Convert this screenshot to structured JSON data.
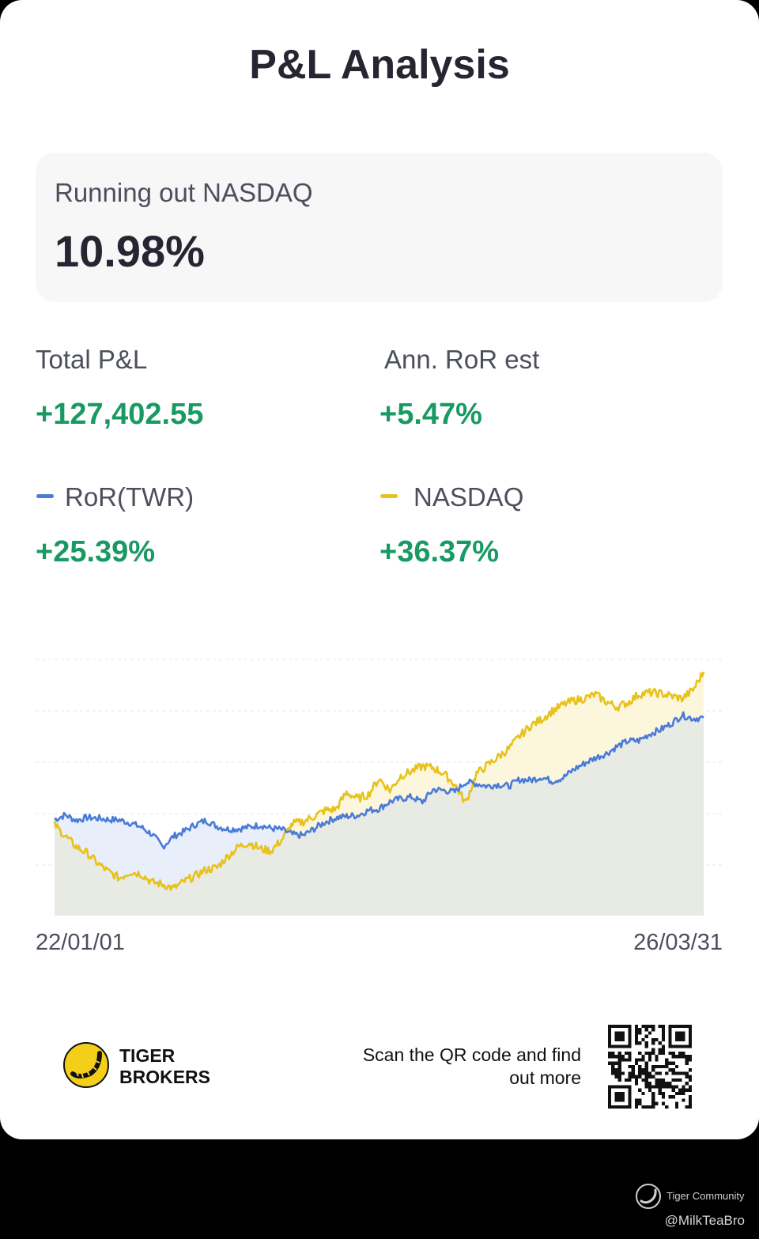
{
  "title": "P&L Analysis",
  "summary": {
    "label": "Running out NASDAQ",
    "value": "10.98%"
  },
  "stats": {
    "total_pl": {
      "label": "Total P&L",
      "value": "+127,402.55"
    },
    "ann_ror": {
      "label": "Ann. RoR est",
      "value": "+5.47%"
    },
    "ror_twr": {
      "label": "RoR(TWR)",
      "value": "+25.39%",
      "color": "#4a7bd8"
    },
    "nasdaq": {
      "label": "NASDAQ",
      "value": "+36.37%",
      "color": "#e8c21a"
    }
  },
  "colors": {
    "positive": "#1a9a63",
    "ror_line": "#4a7bd8",
    "nasdaq_line": "#e8c21a"
  },
  "chart_data": {
    "type": "line",
    "x_start": "22/01/01",
    "x_end": "26/03/31",
    "grid": true,
    "series": [
      {
        "name": "RoR(TWR)",
        "color": "#4a7bd8",
        "values": [
          1.0,
          2.1,
          0.8,
          1.5,
          1.3,
          1.0,
          0.9,
          0.2,
          -0.8,
          -2.5,
          -5.5,
          -3.0,
          -1.8,
          -0.2,
          0.8,
          -0.6,
          -1.3,
          -1.2,
          -0.8,
          -0.3,
          -1.1,
          -1.4,
          -2.6,
          -2.8,
          -1.2,
          0.4,
          1.4,
          1.8,
          2.0,
          3.2,
          3.6,
          5.3,
          6.0,
          6.4,
          5.2,
          8.2,
          8.0,
          7.6,
          10.0,
          9.6,
          9.0,
          9.4,
          9.0,
          10.6,
          10.4,
          11.2,
          10.2,
          11.0,
          13.0,
          14.5,
          15.8,
          16.8,
          18.5,
          19.8,
          19.9,
          21.5,
          22.5,
          24.0,
          26.0,
          25.2,
          25.39
        ]
      },
      {
        "name": "NASDAQ",
        "color": "#e8c21a",
        "values": [
          -0.2,
          -3.0,
          -5.5,
          -7.0,
          -9.5,
          -11.5,
          -13.0,
          -11.5,
          -12.0,
          -14.0,
          -14.5,
          -15.5,
          -13.8,
          -12.5,
          -11.0,
          -10.5,
          -7.8,
          -5.5,
          -4.5,
          -6.0,
          -6.5,
          -3.8,
          0.0,
          0.5,
          1.8,
          3.2,
          3.5,
          7.5,
          6.0,
          7.0,
          10.8,
          8.0,
          11.5,
          12.6,
          13.8,
          13.4,
          12.0,
          9.4,
          5.0,
          12.0,
          14.0,
          16.0,
          18.0,
          21.0,
          23.5,
          25.0,
          27.0,
          28.5,
          29.5,
          30.0,
          31.0,
          29.2,
          28.0,
          29.0,
          31.0,
          31.4,
          31.2,
          30.6,
          30.0,
          32.0,
          36.37
        ]
      }
    ],
    "baseline": 0
  },
  "footer": {
    "brand_line1": "TIGER",
    "brand_line2": "BROKERS",
    "scan_line1": "Scan the QR code and find",
    "scan_line2": "out more",
    "logo_icon": "tiger-logo-icon",
    "qr_icon": "qr-code-icon"
  },
  "watermark": {
    "brand": "Tiger Community",
    "user": "@MilkTeaBro"
  }
}
